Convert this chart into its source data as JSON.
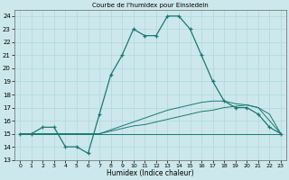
{
  "title": "Courbe de l'humidex pour Einsiedeln",
  "xlabel": "Humidex (Indice chaleur)",
  "bg_color": "#cce8ec",
  "grid_color": "#aad4d8",
  "line_color": "#1a7a6e",
  "xlim": [
    -0.5,
    23.5
  ],
  "ylim": [
    13,
    24.5
  ],
  "yticks": [
    13,
    14,
    15,
    16,
    17,
    18,
    19,
    20,
    21,
    22,
    23,
    24
  ],
  "xticks": [
    0,
    1,
    2,
    3,
    4,
    5,
    6,
    7,
    8,
    9,
    10,
    11,
    12,
    13,
    14,
    15,
    16,
    17,
    18,
    19,
    20,
    21,
    22,
    23
  ],
  "line1_x": [
    0,
    1,
    2,
    3,
    4,
    5,
    6,
    7,
    8,
    9,
    10,
    11,
    12,
    13,
    14,
    15,
    16,
    17,
    18,
    19,
    20,
    21,
    22,
    23
  ],
  "line1_y": [
    15,
    15,
    15.5,
    15.5,
    14,
    14,
    13.5,
    16.5,
    19.5,
    21,
    23,
    22.5,
    22.5,
    24,
    24,
    23,
    21,
    19,
    17.5,
    17,
    17,
    16.5,
    15.5,
    15
  ],
  "line2_x": [
    0,
    1,
    2,
    3,
    4,
    5,
    6,
    7,
    8,
    9,
    10,
    11,
    12,
    13,
    14,
    15,
    16,
    17,
    18,
    19,
    20,
    21,
    22,
    23
  ],
  "line2_y": [
    15,
    15,
    15,
    15,
    15,
    15,
    15,
    15,
    15.2,
    15.4,
    15.6,
    15.7,
    15.9,
    16.1,
    16.3,
    16.5,
    16.7,
    16.8,
    17.0,
    17.1,
    17.2,
    17.0,
    16.0,
    15
  ],
  "line3_x": [
    0,
    1,
    2,
    3,
    4,
    5,
    6,
    7,
    8,
    9,
    10,
    11,
    12,
    13,
    14,
    15,
    16,
    17,
    18,
    19,
    20,
    21,
    22,
    23
  ],
  "line3_y": [
    15,
    15,
    15,
    15,
    15,
    15,
    15,
    15,
    15.3,
    15.6,
    15.9,
    16.2,
    16.5,
    16.8,
    17.0,
    17.2,
    17.4,
    17.5,
    17.5,
    17.3,
    17.2,
    17.0,
    16.5,
    15
  ],
  "line4_x": [
    0,
    23
  ],
  "line4_y": [
    15,
    15
  ]
}
